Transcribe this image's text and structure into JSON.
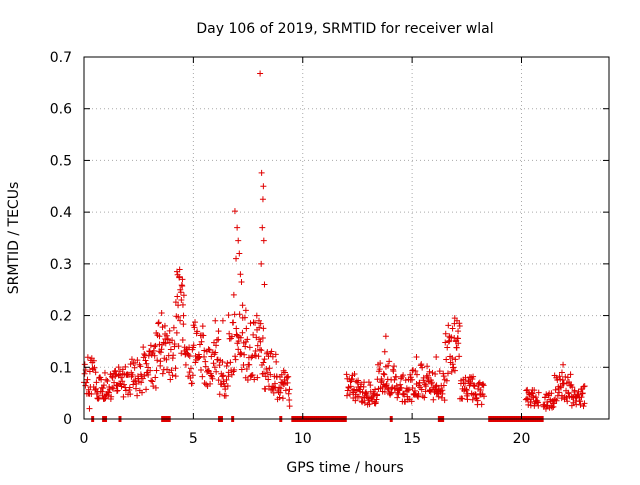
{
  "chart_data": {
    "type": "scatter",
    "title": "Day 106 of 2019, SRMTID for receiver wlal",
    "xlabel": "GPS time / hours",
    "ylabel": "SRMTID / TECUs",
    "xlim": [
      0,
      24
    ],
    "ylim": [
      0,
      0.7
    ],
    "x_ticks": [
      0,
      5,
      10,
      15,
      20
    ],
    "y_ticks": [
      0,
      0.1,
      0.2,
      0.3,
      0.4,
      0.5,
      0.6,
      0.7
    ],
    "x_tick_labels": [
      "0",
      "5",
      "10",
      "15",
      "20"
    ],
    "y_tick_labels": [
      "0",
      "0.1",
      "0.2",
      "0.3",
      "0.4",
      "0.5",
      "0.6",
      "0.7"
    ],
    "grid": true,
    "marker": "+",
    "series": [
      {
        "name": "SRMTID",
        "color": "#e00000",
        "segments": [
          {
            "start": 0.0,
            "end": 0.5,
            "base": 0.085
          },
          {
            "start": 0.5,
            "end": 1.5,
            "base": 0.065
          },
          {
            "start": 1.5,
            "end": 2.0,
            "base": 0.07
          },
          {
            "start": 2.0,
            "end": 2.7,
            "base": 0.08
          },
          {
            "start": 2.7,
            "end": 3.3,
            "base": 0.1
          },
          {
            "start": 3.3,
            "end": 3.8,
            "base": 0.13
          },
          {
            "start": 3.8,
            "end": 4.2,
            "base": 0.13
          },
          {
            "start": 4.2,
            "end": 4.6,
            "base": 0.21
          },
          {
            "start": 4.6,
            "end": 5.0,
            "base": 0.1
          },
          {
            "start": 5.0,
            "end": 5.5,
            "base": 0.13
          },
          {
            "start": 5.5,
            "end": 6.2,
            "base": 0.11
          },
          {
            "start": 6.2,
            "end": 6.6,
            "base": 0.08
          },
          {
            "start": 6.6,
            "end": 7.4,
            "base": 0.14
          },
          {
            "start": 7.4,
            "end": 8.2,
            "base": 0.13
          },
          {
            "start": 8.2,
            "end": 8.8,
            "base": 0.09
          },
          {
            "start": 8.8,
            "end": 9.4,
            "base": 0.065
          },
          {
            "start": 12.0,
            "end": 12.6,
            "base": 0.06
          },
          {
            "start": 12.6,
            "end": 13.4,
            "base": 0.05
          },
          {
            "start": 13.4,
            "end": 14.2,
            "base": 0.08
          },
          {
            "start": 14.2,
            "end": 15.0,
            "base": 0.06
          },
          {
            "start": 15.0,
            "end": 15.8,
            "base": 0.075
          },
          {
            "start": 15.8,
            "end": 16.5,
            "base": 0.065
          },
          {
            "start": 16.5,
            "end": 17.2,
            "base": 0.13
          },
          {
            "start": 17.2,
            "end": 17.8,
            "base": 0.06
          },
          {
            "start": 17.8,
            "end": 18.3,
            "base": 0.05
          },
          {
            "start": 20.2,
            "end": 20.8,
            "base": 0.04
          },
          {
            "start": 21.0,
            "end": 21.5,
            "base": 0.035
          },
          {
            "start": 21.5,
            "end": 22.3,
            "base": 0.06
          },
          {
            "start": 22.3,
            "end": 22.9,
            "base": 0.045
          }
        ],
        "peaks": [
          [
            3.55,
            0.205
          ],
          [
            3.7,
            0.18
          ],
          [
            3.45,
            0.16
          ],
          [
            4.25,
            0.285
          ],
          [
            4.35,
            0.275
          ],
          [
            4.4,
            0.25
          ],
          [
            4.5,
            0.27
          ],
          [
            4.45,
            0.23
          ],
          [
            4.3,
            0.22
          ],
          [
            4.55,
            0.2
          ],
          [
            6.0,
            0.19
          ],
          [
            6.15,
            0.17
          ],
          [
            6.35,
            0.19
          ],
          [
            6.9,
            0.402
          ],
          [
            7.0,
            0.37
          ],
          [
            7.05,
            0.345
          ],
          [
            7.1,
            0.32
          ],
          [
            6.95,
            0.31
          ],
          [
            7.15,
            0.28
          ],
          [
            7.2,
            0.265
          ],
          [
            6.85,
            0.24
          ],
          [
            7.25,
            0.22
          ],
          [
            7.4,
            0.21
          ],
          [
            8.05,
            0.668
          ],
          [
            8.12,
            0.476
          ],
          [
            8.2,
            0.45
          ],
          [
            8.18,
            0.425
          ],
          [
            8.15,
            0.37
          ],
          [
            8.22,
            0.345
          ],
          [
            8.1,
            0.3
          ],
          [
            8.25,
            0.26
          ],
          [
            7.9,
            0.2
          ],
          [
            8.0,
            0.19
          ],
          [
            13.8,
            0.16
          ],
          [
            13.75,
            0.13
          ],
          [
            15.2,
            0.12
          ],
          [
            16.1,
            0.12
          ],
          [
            16.95,
            0.195
          ],
          [
            17.05,
            0.19
          ],
          [
            16.85,
            0.175
          ],
          [
            17.1,
            0.17
          ],
          [
            17.0,
            0.15
          ],
          [
            16.7,
            0.16
          ],
          [
            21.9,
            0.105
          ],
          [
            21.85,
            0.09
          ],
          [
            0.25,
            0.02
          ],
          [
            9.4,
            0.025
          ]
        ],
        "zero_bands": [
          [
            0.35,
            0.45
          ],
          [
            0.85,
            1.05
          ],
          [
            1.6,
            1.7
          ],
          [
            3.55,
            3.95
          ],
          [
            6.15,
            6.35
          ],
          [
            6.75,
            6.85
          ],
          [
            8.95,
            9.05
          ],
          [
            9.5,
            12.0
          ],
          [
            14.0,
            14.1
          ],
          [
            16.2,
            16.45
          ],
          [
            18.5,
            21.0
          ]
        ]
      }
    ]
  }
}
